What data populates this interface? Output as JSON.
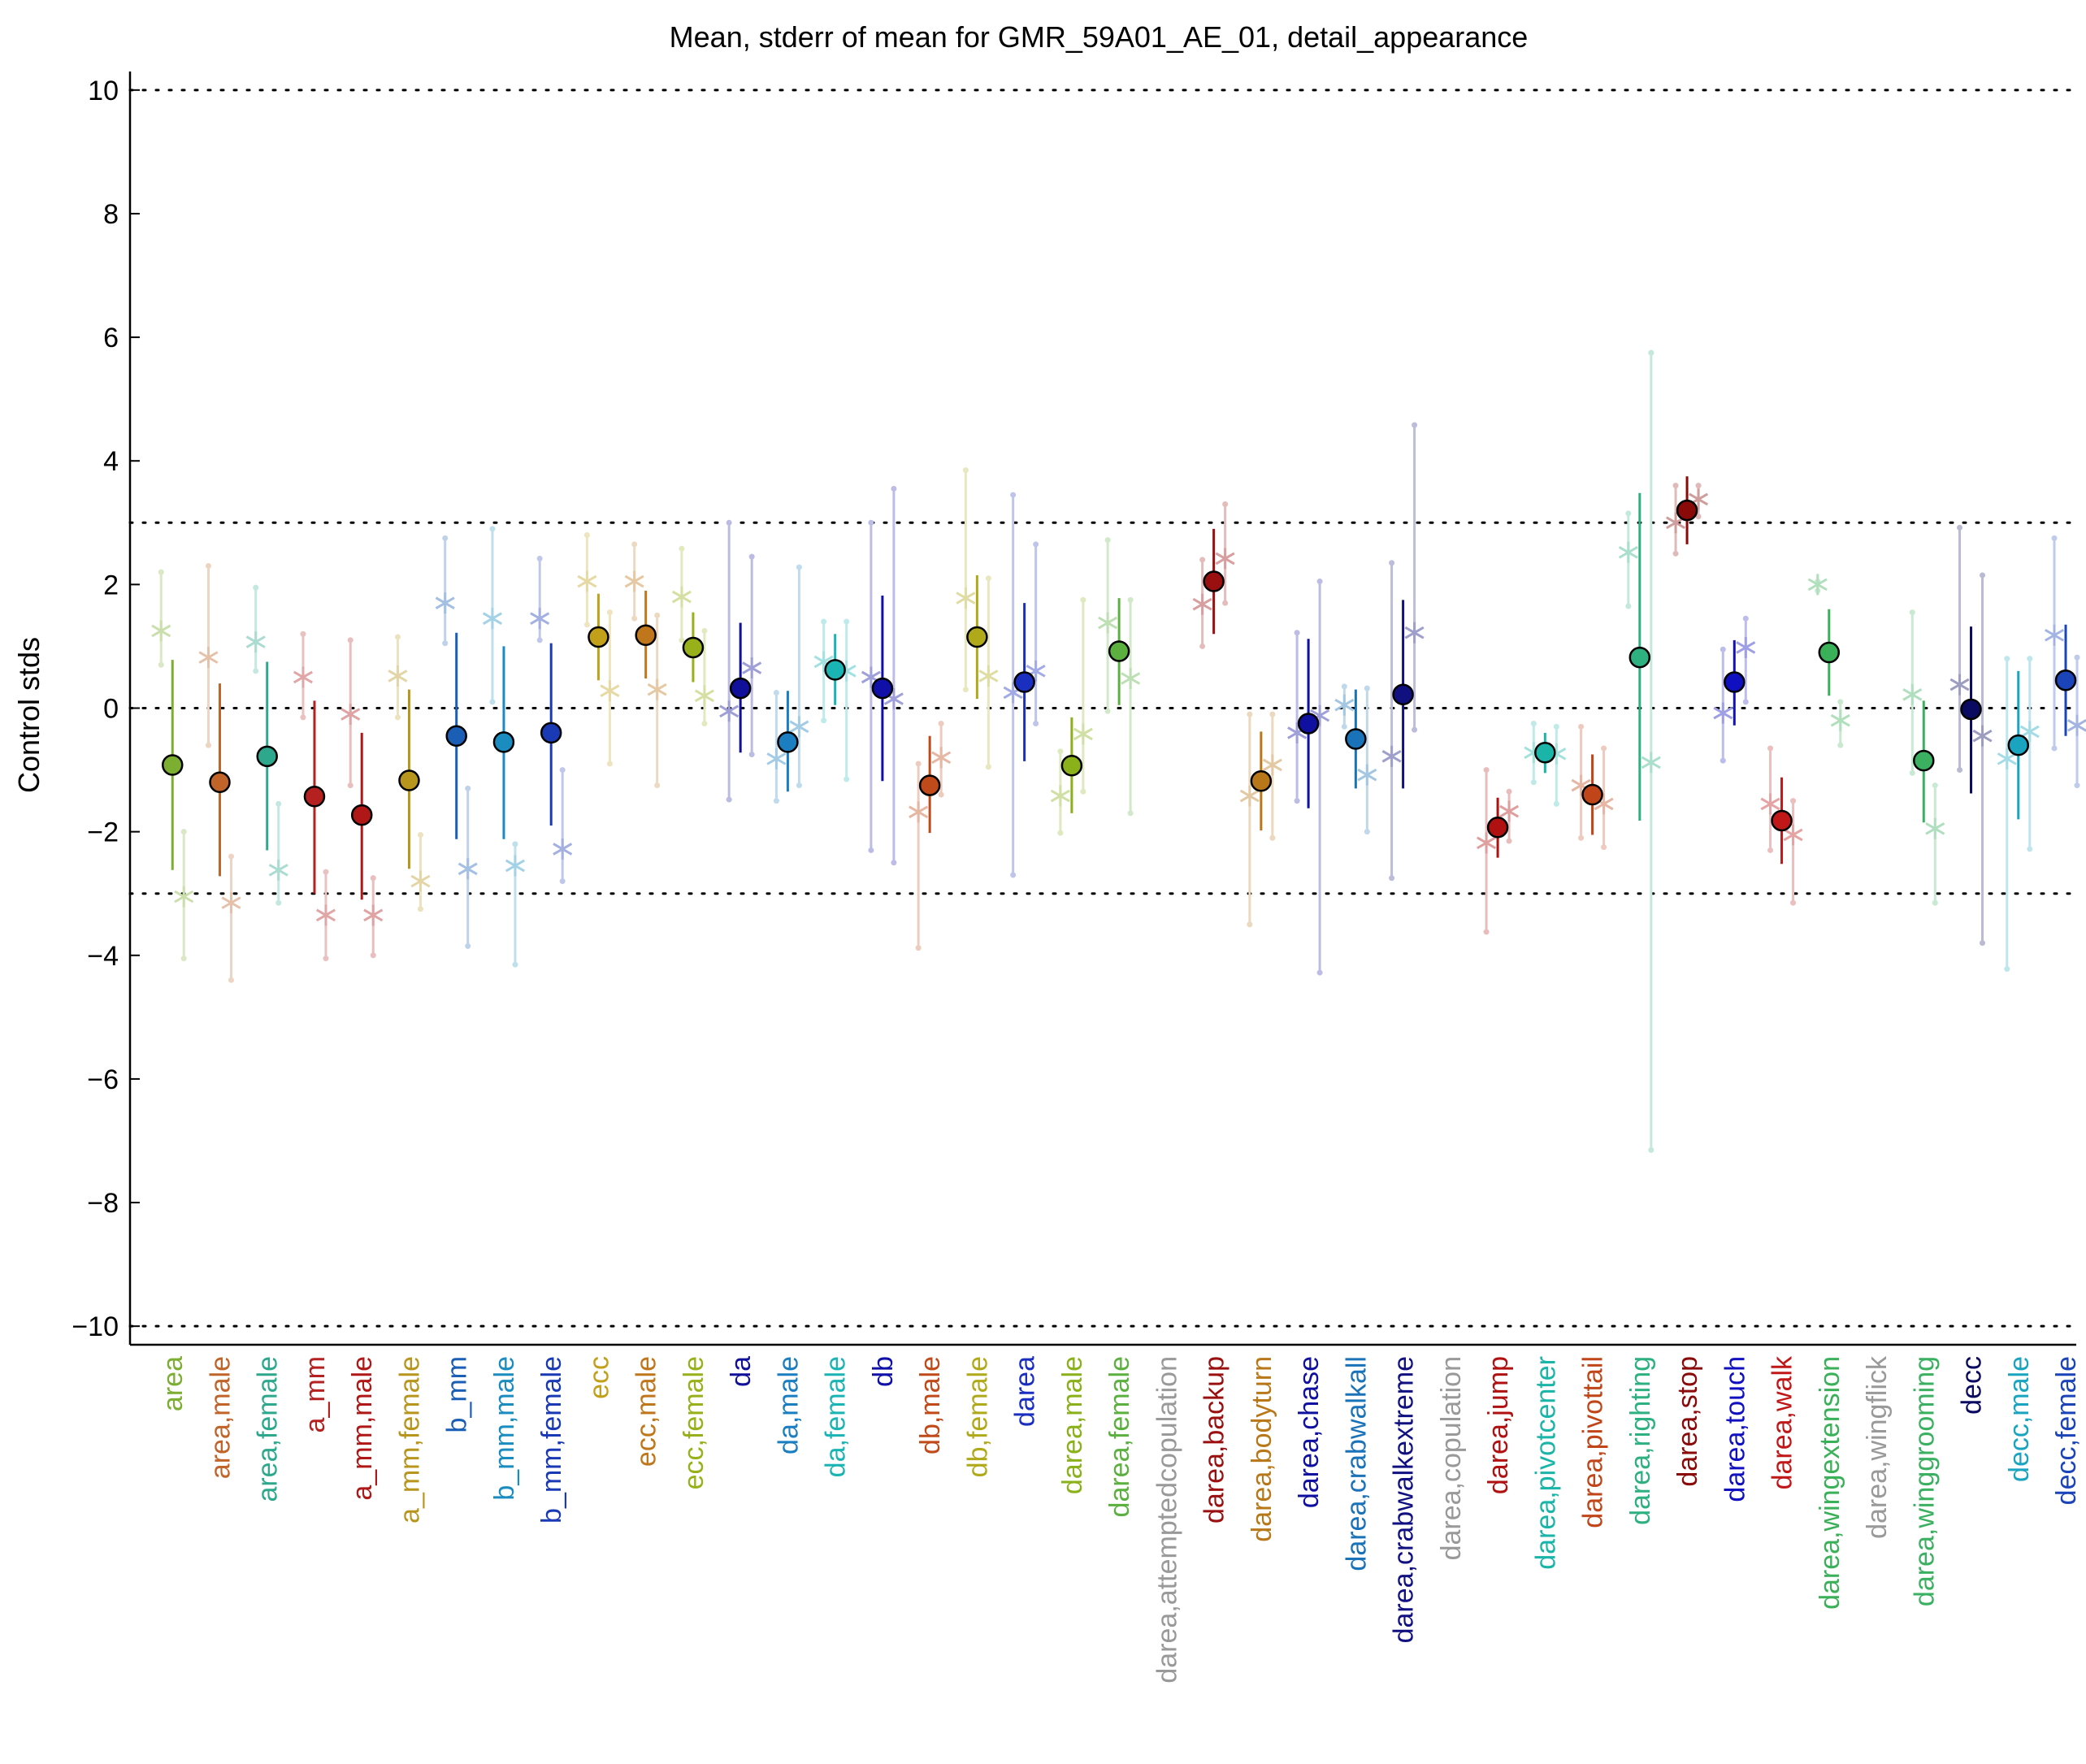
{
  "chart_data": {
    "type": "scatter",
    "title": "Mean, stderr of mean for GMR_59A01_AE_01, detail_appearance",
    "ylabel": "Control stds",
    "xlabel": "",
    "ylim": [
      -10.3,
      10.3
    ],
    "yticks": [
      10,
      8,
      6,
      4,
      2,
      0,
      -2,
      -4,
      -6,
      -8,
      -10
    ],
    "ytick_labels": [
      "10",
      "8",
      "6",
      "4",
      "2",
      "0",
      "−2",
      "−4",
      "−6",
      "−8",
      "−10"
    ],
    "reference_lines": [
      10,
      3,
      0,
      -3,
      -10
    ],
    "grid": false,
    "categories": [
      {
        "label": "area",
        "color": "#7cae32",
        "mean": -0.92,
        "lo": -2.62,
        "hi": 0.78,
        "m1": 1.25,
        "m1lo": 0.7,
        "m1hi": 2.2,
        "m2": -3.05,
        "m2lo": -4.05,
        "m2hi": -2.0
      },
      {
        "label": "area,male",
        "color": "#c0642a",
        "mean": -1.2,
        "lo": -2.72,
        "hi": 0.4,
        "m1": 0.82,
        "m1lo": -0.6,
        "m1hi": 2.3,
        "m2": -3.15,
        "m2lo": -4.4,
        "m2hi": -2.4
      },
      {
        "label": "area,female",
        "color": "#2ea88c",
        "mean": -0.78,
        "lo": -2.3,
        "hi": 0.75,
        "m1": 1.07,
        "m1lo": 0.6,
        "m1hi": 1.95,
        "m2": -2.62,
        "m2lo": -3.15,
        "m2hi": -1.55
      },
      {
        "label": "a_mm",
        "color": "#b52020",
        "mean": -1.43,
        "lo": -3.0,
        "hi": 0.12,
        "m1": 0.5,
        "m1lo": -0.15,
        "m1hi": 1.2,
        "m2": -3.35,
        "m2lo": -4.05,
        "m2hi": -2.65
      },
      {
        "label": "a_mm,male",
        "color": "#b01818",
        "mean": -1.73,
        "lo": -3.1,
        "hi": -0.4,
        "m1": -0.1,
        "m1lo": -1.25,
        "m1hi": 1.1,
        "m2": -3.35,
        "m2lo": -4.0,
        "m2hi": -2.75
      },
      {
        "label": "a_mm,female",
        "color": "#b8961e",
        "mean": -1.17,
        "lo": -2.6,
        "hi": 0.3,
        "m1": 0.52,
        "m1lo": -0.15,
        "m1hi": 1.15,
        "m2": -2.8,
        "m2lo": -3.25,
        "m2hi": -2.05
      },
      {
        "label": "b_mm",
        "color": "#1a5eb5",
        "mean": -0.45,
        "lo": -2.12,
        "hi": 1.22,
        "m1": 1.7,
        "m1lo": 1.05,
        "m1hi": 2.75,
        "m2": -2.6,
        "m2lo": -3.85,
        "m2hi": -1.3
      },
      {
        "label": "b_mm,male",
        "color": "#1a8cc0",
        "mean": -0.55,
        "lo": -2.12,
        "hi": 1.0,
        "m1": 1.45,
        "m1lo": 0.1,
        "m1hi": 2.9,
        "m2": -2.55,
        "m2lo": -4.15,
        "m2hi": -2.2
      },
      {
        "label": "b_mm,female",
        "color": "#1a3ab5",
        "mean": -0.4,
        "lo": -1.9,
        "hi": 1.05,
        "m1": 1.45,
        "m1lo": 1.1,
        "m1hi": 2.42,
        "m2": -2.28,
        "m2lo": -2.8,
        "m2hi": -1.0
      },
      {
        "label": "ecc",
        "color": "#c2a01a",
        "mean": 1.15,
        "lo": 0.45,
        "hi": 1.85,
        "m1": 2.05,
        "m1lo": 1.35,
        "m1hi": 2.8,
        "m2": 0.28,
        "m2lo": -0.9,
        "m2hi": 1.55
      },
      {
        "label": "ecc,male",
        "color": "#c0761a",
        "mean": 1.18,
        "lo": 0.48,
        "hi": 1.9,
        "m1": 2.05,
        "m1lo": 1.45,
        "m1hi": 2.65,
        "m2": 0.3,
        "m2lo": -1.25,
        "m2hi": 1.5
      },
      {
        "label": "ecc,female",
        "color": "#98b01a",
        "mean": 0.98,
        "lo": 0.42,
        "hi": 1.55,
        "m1": 1.8,
        "m1lo": 1.1,
        "m1hi": 2.58,
        "m2": 0.2,
        "m2lo": -0.25,
        "m2hi": 1.25
      },
      {
        "label": "da",
        "color": "#10109a",
        "mean": 0.32,
        "lo": -0.72,
        "hi": 1.38,
        "m1": -0.05,
        "m1lo": -1.48,
        "m1hi": 3.0,
        "m2": 0.65,
        "m2lo": -0.75,
        "m2hi": 2.45
      },
      {
        "label": "da,male",
        "color": "#1a7ec0",
        "mean": -0.55,
        "lo": -1.35,
        "hi": 0.28,
        "m1": -0.82,
        "m1lo": -1.5,
        "m1hi": 0.25,
        "m2": -0.3,
        "m2lo": -1.25,
        "m2hi": 2.28
      },
      {
        "label": "da,female",
        "color": "#1ab4b4",
        "mean": 0.62,
        "lo": 0.05,
        "hi": 1.2,
        "m1": 0.75,
        "m1lo": -0.2,
        "m1hi": 1.4,
        "m2": 0.6,
        "m2lo": -1.15,
        "m2hi": 1.4
      },
      {
        "label": "db",
        "color": "#1010a8",
        "mean": 0.32,
        "lo": -1.18,
        "hi": 1.82,
        "m1": 0.5,
        "m1lo": -2.3,
        "m1hi": 3.0,
        "m2": 0.15,
        "m2lo": -2.5,
        "m2hi": 3.55
      },
      {
        "label": "db,male",
        "color": "#c04a1a",
        "mean": -1.25,
        "lo": -2.02,
        "hi": -0.45,
        "m1": -1.68,
        "m1lo": -3.88,
        "m1hi": -0.9,
        "m2": -0.8,
        "m2lo": -1.4,
        "m2hi": -0.25
      },
      {
        "label": "db,female",
        "color": "#b0aa1a",
        "mean": 1.15,
        "lo": 0.15,
        "hi": 2.15,
        "m1": 1.78,
        "m1lo": 0.3,
        "m1hi": 3.85,
        "m2": 0.52,
        "m2lo": -0.95,
        "m2hi": 2.1
      },
      {
        "label": "darea",
        "color": "#1a2ec0",
        "mean": 0.42,
        "lo": -0.86,
        "hi": 1.7,
        "m1": 0.25,
        "m1lo": -2.7,
        "m1hi": 3.45,
        "m2": 0.6,
        "m2lo": -0.25,
        "m2hi": 2.65
      },
      {
        "label": "darea,male",
        "color": "#8ab01a",
        "mean": -0.93,
        "lo": -1.7,
        "hi": -0.15,
        "m1": -1.42,
        "m1lo": -2.02,
        "m1hi": -0.7,
        "m2": -0.42,
        "m2lo": -1.35,
        "m2hi": 1.75
      },
      {
        "label": "darea,female",
        "color": "#5cb040",
        "mean": 0.92,
        "lo": 0.05,
        "hi": 1.78,
        "m1": 1.38,
        "m1lo": -0.05,
        "m1hi": 2.72,
        "m2": 0.48,
        "m2lo": -1.7,
        "m2hi": 1.75
      },
      {
        "label": "darea,attemptedcopulation",
        "color": "#999999",
        "mean": null
      },
      {
        "label": "darea,backup",
        "color": "#9a1010",
        "mean": 2.05,
        "lo": 1.2,
        "hi": 2.9,
        "m1": 1.68,
        "m1lo": 1.0,
        "m1hi": 2.4,
        "m2": 2.42,
        "m2lo": 1.7,
        "m2hi": 3.3
      },
      {
        "label": "darea,bodyturn",
        "color": "#b8781a",
        "mean": -1.18,
        "lo": -1.98,
        "hi": -0.38,
        "m1": -1.42,
        "m1lo": -3.5,
        "m1hi": -0.1,
        "m2": -0.92,
        "m2lo": -2.1,
        "m2hi": -0.1
      },
      {
        "label": "darea,chase",
        "color": "#1010a0",
        "mean": -0.25,
        "lo": -1.62,
        "hi": 1.12,
        "m1": -0.4,
        "m1lo": -1.5,
        "m1hi": 1.22,
        "m2": -0.12,
        "m2lo": -4.28,
        "m2hi": 2.05
      },
      {
        "label": "darea,crabwalkall",
        "color": "#1a72b8",
        "mean": -0.5,
        "lo": -1.3,
        "hi": 0.3,
        "m1": 0.05,
        "m1lo": -0.3,
        "m1hi": 0.35,
        "m2": -1.08,
        "m2lo": -2.0,
        "m2hi": 0.32
      },
      {
        "label": "darea,crabwalkextreme",
        "color": "#101080",
        "mean": 0.22,
        "lo": -1.3,
        "hi": 1.75,
        "m1": -0.78,
        "m1lo": -2.75,
        "m1hi": 2.35,
        "m2": 1.22,
        "m2lo": -0.35,
        "m2hi": 4.58
      },
      {
        "label": "darea,copulation",
        "color": "#999999",
        "mean": null
      },
      {
        "label": "darea,jump",
        "color": "#b01010",
        "mean": -1.93,
        "lo": -2.42,
        "hi": -1.45,
        "m1": -2.18,
        "m1lo": -3.62,
        "m1hi": -1.0,
        "m2": -1.67,
        "m2lo": -2.15,
        "m2hi": -1.35
      },
      {
        "label": "darea,pivotcenter",
        "color": "#1ab4a8",
        "mean": -0.72,
        "lo": -1.05,
        "hi": -0.4,
        "m1": -0.72,
        "m1lo": -1.2,
        "m1hi": -0.25,
        "m2": -0.74,
        "m2lo": -1.55,
        "m2hi": -0.3
      },
      {
        "label": "darea,pivottail",
        "color": "#c0461a",
        "mean": -1.4,
        "lo": -2.05,
        "hi": -0.75,
        "m1": -1.25,
        "m1lo": -2.1,
        "m1hi": -0.3,
        "m2": -1.55,
        "m2lo": -2.25,
        "m2hi": -0.65
      },
      {
        "label": "darea,righting",
        "color": "#2eb080",
        "mean": 0.82,
        "lo": -1.82,
        "hi": 3.48,
        "m1": 2.52,
        "m1lo": 1.65,
        "m1hi": 3.15,
        "m2": -0.88,
        "m2lo": -7.15,
        "m2hi": 5.75
      },
      {
        "label": "darea,stop",
        "color": "#8a0a0a",
        "mean": 3.2,
        "lo": 2.65,
        "hi": 3.75,
        "m1": 3.0,
        "m1lo": 2.5,
        "m1hi": 3.6,
        "m2": 3.38,
        "m2lo": 3.1,
        "m2hi": 3.6
      },
      {
        "label": "darea,touch",
        "color": "#1010c0",
        "mean": 0.42,
        "lo": -0.28,
        "hi": 1.1,
        "m1": -0.08,
        "m1lo": -0.85,
        "m1hi": 0.95,
        "m2": 0.98,
        "m2lo": 0.1,
        "m2hi": 1.45
      },
      {
        "label": "darea,walk",
        "color": "#c01818",
        "mean": -1.82,
        "lo": -2.52,
        "hi": -1.12,
        "m1": -1.55,
        "m1lo": -2.3,
        "m1hi": -0.65,
        "m2": -2.05,
        "m2lo": -3.15,
        "m2hi": -1.5
      },
      {
        "label": "darea,wingextension",
        "color": "#3ab058",
        "mean": 0.9,
        "lo": 0.2,
        "hi": 1.6,
        "m1": 2.0,
        "m1lo": 1.9,
        "m1hi": 2.05,
        "m2": -0.2,
        "m2lo": -0.6,
        "m2hi": 0.1
      },
      {
        "label": "darea,wingflick",
        "color": "#999999",
        "mean": null
      },
      {
        "label": "darea,winggrooming",
        "color": "#3ab060",
        "mean": -0.85,
        "lo": -1.85,
        "hi": 0.12,
        "m1": 0.22,
        "m1lo": -1.05,
        "m1hi": 1.55,
        "m2": -1.95,
        "m2lo": -3.15,
        "m2hi": -1.25
      },
      {
        "label": "decc",
        "color": "#0a0a60",
        "mean": -0.02,
        "lo": -1.38,
        "hi": 1.32,
        "m1": 0.38,
        "m1lo": -1.0,
        "m1hi": 2.92,
        "m2": -0.45,
        "m2lo": -3.8,
        "m2hi": 2.15
      },
      {
        "label": "decc,male",
        "color": "#1aa4c0",
        "mean": -0.6,
        "lo": -1.8,
        "hi": 0.6,
        "m1": -0.82,
        "m1lo": -4.22,
        "m1hi": 0.8,
        "m2": -0.38,
        "m2lo": -2.28,
        "m2hi": 0.8
      },
      {
        "label": "decc,female",
        "color": "#1a44b8",
        "mean": 0.45,
        "lo": -0.45,
        "hi": 1.35,
        "m1": 1.18,
        "m1lo": -0.65,
        "m1hi": 2.75,
        "m2": -0.28,
        "m2lo": -1.25,
        "m2hi": 0.82
      }
    ]
  }
}
